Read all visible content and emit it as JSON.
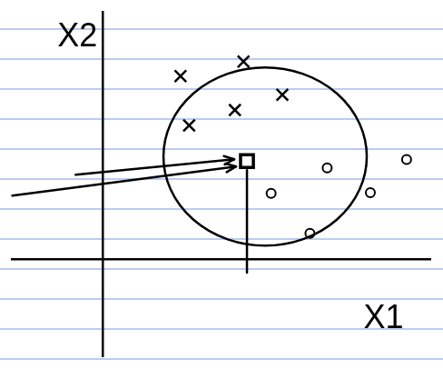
{
  "chart_data": {
    "type": "scatter",
    "x_label": "X1",
    "y_label": "X2",
    "xlim": [
      -10.5,
      38
    ],
    "ylim": [
      -11.5,
      29
    ],
    "tick_labels": false,
    "grid": false,
    "series": [
      {
        "color": "#000000",
        "marker": "x",
        "x": [
          9,
          16.3,
          15.3,
          20.8,
          10
        ],
        "values": [
          21.5,
          23.2,
          17.5,
          19.3,
          15.7
        ]
      },
      {
        "color": "#000000",
        "marker": "o",
        "x": [
          26,
          35.2,
          31,
          19.5,
          24
        ],
        "values": [
          10.7,
          11.7,
          7.8,
          7.7,
          3
        ]
      },
      {
        "color": "#000000",
        "marker": "square",
        "x": [
          16.7
        ],
        "values": [
          11.5
        ]
      }
    ]
  }
}
